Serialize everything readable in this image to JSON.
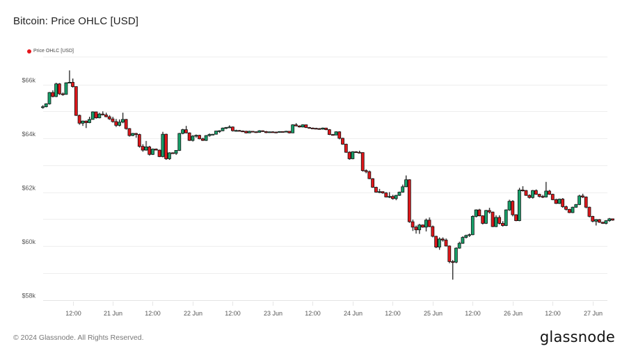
{
  "header": {
    "title": "Bitcoin: Price OHLC [USD]"
  },
  "legend": {
    "items": [
      {
        "label": "Price OHLC [USD]",
        "color": "#e5161c"
      }
    ]
  },
  "footer": {
    "copyright": "© 2024 Glassnode. All Rights Reserved.",
    "brand": "glassnode"
  },
  "colors": {
    "up": "#18a06a",
    "down": "#e0171b",
    "border": "#111111",
    "wick": "#8a8a8a",
    "grid": "#eeeeee"
  },
  "chart_data": {
    "type": "candlestick",
    "title": "Bitcoin: Price OHLC [USD]",
    "xlabel": "",
    "ylabel": "",
    "ylim": [
      57900,
      67000
    ],
    "grid": true,
    "legend_position": "top-left",
    "legend": [
      "Price OHLC [USD]"
    ],
    "y_ticks": [
      {
        "label": "$58k",
        "value": 58000
      },
      {
        "label": "$60k",
        "value": 60000
      },
      {
        "label": "$62k",
        "value": 62000
      },
      {
        "label": "$64k",
        "value": 64000
      },
      {
        "label": "$66k",
        "value": 66000
      }
    ],
    "x_ticks": [
      {
        "label": "12:00",
        "hour": -12
      },
      {
        "label": "21 Jun",
        "hour": 0
      },
      {
        "label": "12:00",
        "hour": 12
      },
      {
        "label": "22 Jun",
        "hour": 24
      },
      {
        "label": "12:00",
        "hour": 36
      },
      {
        "label": "23 Jun",
        "hour": 48
      },
      {
        "label": "12:00",
        "hour": 60
      },
      {
        "label": "24 Jun",
        "hour": 72
      },
      {
        "label": "12:00",
        "hour": 84
      },
      {
        "label": "25 Jun",
        "hour": 96
      },
      {
        "label": "12:00",
        "hour": 108
      },
      {
        "label": "26 Jun",
        "hour": 120
      },
      {
        "label": "12:00",
        "hour": 132
      },
      {
        "label": "27 Jun",
        "hour": 144
      }
    ],
    "interval": "1h",
    "start_hour": -21,
    "candles": [
      [
        65150,
        65230,
        65100,
        65170
      ],
      [
        65170,
        65300,
        65150,
        65280
      ],
      [
        65280,
        65720,
        65250,
        65700
      ],
      [
        65700,
        65780,
        65520,
        65550
      ],
      [
        65550,
        66060,
        65530,
        66020
      ],
      [
        66020,
        66050,
        65610,
        65650
      ],
      [
        65650,
        65700,
        65580,
        65630
      ],
      [
        65630,
        66080,
        65620,
        66060
      ],
      [
        66060,
        66520,
        66040,
        66080
      ],
      [
        66080,
        66220,
        65880,
        65920
      ],
      [
        65920,
        65930,
        64830,
        64850
      ],
      [
        64850,
        64880,
        64500,
        64560
      ],
      [
        64560,
        64660,
        64460,
        64640
      ],
      [
        64640,
        64660,
        64380,
        64580
      ],
      [
        64580,
        64800,
        64560,
        64700
      ],
      [
        64700,
        65000,
        64690,
        64980
      ],
      [
        64980,
        64990,
        64730,
        64760
      ],
      [
        64760,
        64950,
        64740,
        64900
      ],
      [
        64900,
        65000,
        64850,
        64870
      ],
      [
        64870,
        64950,
        64780,
        64800
      ],
      [
        64800,
        64860,
        64680,
        64720
      ],
      [
        64720,
        64800,
        64580,
        64620
      ],
      [
        64620,
        64720,
        64420,
        64480
      ],
      [
        64480,
        64700,
        64440,
        64600
      ],
      [
        64600,
        64950,
        64560,
        64700
      ],
      [
        64700,
        64720,
        64320,
        64360
      ],
      [
        64360,
        64380,
        64060,
        64100
      ],
      [
        64100,
        64200,
        64080,
        64180
      ],
      [
        64180,
        64200,
        64020,
        64140
      ],
      [
        64140,
        64170,
        63650,
        63700
      ],
      [
        63700,
        63780,
        63500,
        63560
      ],
      [
        63560,
        63900,
        63540,
        63680
      ],
      [
        63680,
        63720,
        63360,
        63400
      ],
      [
        63400,
        63620,
        63380,
        63600
      ],
      [
        63600,
        63620,
        63550,
        63560
      ],
      [
        63560,
        63580,
        63300,
        63320
      ],
      [
        63320,
        64240,
        63290,
        64150
      ],
      [
        64150,
        64170,
        63200,
        63240
      ],
      [
        63240,
        63480,
        63200,
        63460
      ],
      [
        63460,
        63480,
        63420,
        63440
      ],
      [
        63440,
        63560,
        63380,
        63550
      ],
      [
        63550,
        64200,
        63530,
        64180
      ],
      [
        64180,
        64350,
        64150,
        64320
      ],
      [
        64320,
        64460,
        64180,
        64200
      ],
      [
        64200,
        64220,
        63900,
        63920
      ],
      [
        63920,
        64120,
        63880,
        64080
      ],
      [
        64080,
        64140,
        64020,
        64110
      ],
      [
        64110,
        64130,
        63960,
        63980
      ],
      [
        63980,
        64020,
        63900,
        63920
      ],
      [
        63920,
        64120,
        63900,
        64100
      ],
      [
        64100,
        64180,
        64060,
        64140
      ],
      [
        64140,
        64160,
        64120,
        64150
      ],
      [
        64150,
        64280,
        64140,
        64270
      ],
      [
        64270,
        64300,
        64200,
        64280
      ],
      [
        64280,
        64400,
        64260,
        64380
      ],
      [
        64380,
        64420,
        64340,
        64400
      ],
      [
        64400,
        64480,
        64380,
        64420
      ],
      [
        64420,
        64440,
        64250,
        64280
      ],
      [
        64280,
        64320,
        64250,
        64290
      ],
      [
        64290,
        64310,
        64260,
        64270
      ],
      [
        64270,
        64290,
        64250,
        64260
      ],
      [
        64260,
        64280,
        64180,
        64200
      ],
      [
        64200,
        64280,
        64190,
        64260
      ],
      [
        64260,
        64270,
        64230,
        64240
      ],
      [
        64240,
        64260,
        64210,
        64220
      ],
      [
        64220,
        64300,
        64210,
        64280
      ],
      [
        64280,
        64290,
        64240,
        64250
      ],
      [
        64250,
        64270,
        64190,
        64210
      ],
      [
        64210,
        64250,
        64200,
        64240
      ],
      [
        64240,
        64260,
        64220,
        64230
      ],
      [
        64230,
        64250,
        64200,
        64220
      ],
      [
        64220,
        64260,
        64210,
        64250
      ],
      [
        64250,
        64260,
        64230,
        64240
      ],
      [
        64240,
        64280,
        64220,
        64260
      ],
      [
        64260,
        64270,
        64180,
        64200
      ],
      [
        64200,
        64520,
        64190,
        64500
      ],
      [
        64500,
        64560,
        64440,
        64460
      ],
      [
        64460,
        64480,
        64400,
        64420
      ],
      [
        64420,
        64520,
        64400,
        64500
      ],
      [
        64500,
        64510,
        64380,
        64400
      ],
      [
        64400,
        64420,
        64360,
        64380
      ],
      [
        64380,
        64400,
        64350,
        64370
      ],
      [
        64370,
        64390,
        64340,
        64360
      ],
      [
        64360,
        64380,
        64320,
        64340
      ],
      [
        64340,
        64400,
        64320,
        64380
      ],
      [
        64380,
        64390,
        64300,
        64320
      ],
      [
        64320,
        64340,
        64120,
        64140
      ],
      [
        64140,
        64160,
        64100,
        64120
      ],
      [
        64120,
        64260,
        64110,
        64240
      ],
      [
        64240,
        64260,
        63960,
        64000
      ],
      [
        64000,
        64020,
        63760,
        63780
      ],
      [
        63780,
        63800,
        63460,
        63480
      ],
      [
        63480,
        63520,
        63200,
        63240
      ],
      [
        63240,
        63520,
        63220,
        63500
      ],
      [
        63500,
        63520,
        63460,
        63480
      ],
      [
        63480,
        63540,
        63440,
        63470
      ],
      [
        63470,
        63480,
        62760,
        62800
      ],
      [
        62800,
        62850,
        62700,
        62760
      ],
      [
        62760,
        62800,
        62480,
        62500
      ],
      [
        62500,
        62520,
        62160,
        62180
      ],
      [
        62180,
        62200,
        61980,
        62000
      ],
      [
        62000,
        62120,
        61960,
        62020
      ],
      [
        62020,
        62030,
        61940,
        61970
      ],
      [
        61970,
        62000,
        61800,
        61820
      ],
      [
        61820,
        62000,
        61780,
        61840
      ],
      [
        61840,
        61900,
        61720,
        61760
      ],
      [
        61760,
        61900,
        61700,
        61880
      ],
      [
        61880,
        62020,
        61860,
        62000
      ],
      [
        62000,
        62280,
        61980,
        62200
      ],
      [
        62200,
        62620,
        62180,
        62460
      ],
      [
        62460,
        62480,
        60860,
        60900
      ],
      [
        60900,
        60980,
        60560,
        60700
      ],
      [
        60700,
        60760,
        60460,
        60600
      ],
      [
        60600,
        60820,
        60450,
        60780
      ],
      [
        60780,
        60800,
        60680,
        60700
      ],
      [
        60700,
        61020,
        60540,
        60960
      ],
      [
        60960,
        61060,
        60700,
        60720
      ],
      [
        60720,
        60760,
        60320,
        60360
      ],
      [
        60360,
        60380,
        59920,
        59960
      ],
      [
        59960,
        60320,
        59860,
        60260
      ],
      [
        60260,
        60320,
        60160,
        60220
      ],
      [
        60220,
        60280,
        59980,
        60000
      ],
      [
        60000,
        60020,
        59360,
        59420
      ],
      [
        59420,
        59480,
        58750,
        59400
      ],
      [
        59400,
        59950,
        59360,
        59920
      ],
      [
        59920,
        60160,
        59900,
        60100
      ],
      [
        60100,
        60360,
        60080,
        60320
      ],
      [
        60320,
        60420,
        60280,
        60390
      ],
      [
        60390,
        60460,
        60340,
        60420
      ],
      [
        60420,
        61140,
        60400,
        61100
      ],
      [
        61100,
        61360,
        61060,
        61340
      ],
      [
        61340,
        61380,
        61100,
        61120
      ],
      [
        61120,
        61140,
        60800,
        60840
      ],
      [
        60840,
        61340,
        60820,
        61320
      ],
      [
        61320,
        61420,
        61200,
        61260
      ],
      [
        61260,
        61280,
        60700,
        60720
      ],
      [
        60720,
        61140,
        60700,
        61060
      ],
      [
        61060,
        61140,
        60800,
        60840
      ],
      [
        60840,
        60920,
        60720,
        60760
      ],
      [
        60760,
        61360,
        60740,
        61340
      ],
      [
        61340,
        61720,
        61300,
        61660
      ],
      [
        61660,
        61700,
        61100,
        61160
      ],
      [
        61160,
        61180,
        60920,
        60940
      ],
      [
        60940,
        62160,
        60920,
        62080
      ],
      [
        62080,
        62220,
        62020,
        62060
      ],
      [
        62060,
        62080,
        61860,
        61880
      ],
      [
        61880,
        61920,
        61760,
        61800
      ],
      [
        61800,
        62080,
        61760,
        62060
      ],
      [
        62060,
        62100,
        61900,
        61920
      ],
      [
        61920,
        61940,
        61800,
        61840
      ],
      [
        61840,
        61900,
        61780,
        61820
      ],
      [
        61820,
        62380,
        61800,
        62040
      ],
      [
        62040,
        62080,
        61900,
        61920
      ],
      [
        61920,
        61940,
        61700,
        61720
      ],
      [
        61720,
        61760,
        61560,
        61580
      ],
      [
        61580,
        61760,
        61560,
        61740
      ],
      [
        61740,
        61780,
        61420,
        61460
      ],
      [
        61460,
        61500,
        61320,
        61360
      ],
      [
        61360,
        61380,
        61220,
        61240
      ],
      [
        61240,
        61460,
        61220,
        61440
      ],
      [
        61440,
        61560,
        61420,
        61540
      ],
      [
        61540,
        61900,
        61520,
        61860
      ],
      [
        61860,
        61940,
        61780,
        61820
      ],
      [
        61820,
        61840,
        61400,
        61440
      ],
      [
        61440,
        61460,
        61060,
        61100
      ],
      [
        61100,
        61120,
        60880,
        60920
      ],
      [
        60920,
        61000,
        60760,
        60980
      ],
      [
        60980,
        61000,
        60860,
        60880
      ],
      [
        60880,
        60900,
        60820,
        60840
      ],
      [
        60840,
        60960,
        60800,
        60940
      ],
      [
        60940,
        61040,
        60900,
        61010
      ],
      [
        61010,
        61020,
        60940,
        60960
      ]
    ]
  }
}
